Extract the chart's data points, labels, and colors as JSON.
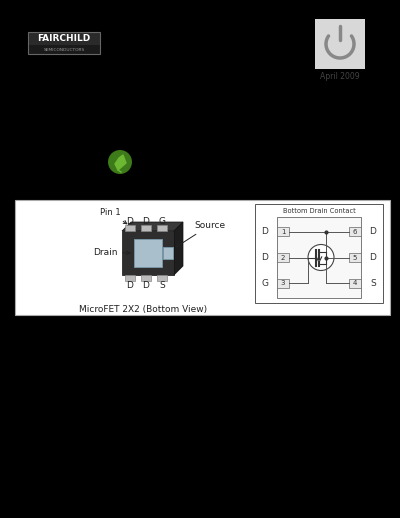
{
  "bg_color": "#000000",
  "white_box_color": "#ffffff",
  "chip_dark": "#222222",
  "chip_mid": "#444444",
  "chip_top": "#333333",
  "chip_side": "#1a1a1a",
  "light_blue_pad": "#aabfcc",
  "pin_box_color": "#bbbbbb",
  "fairchild_text": "FAIRCHILD",
  "fairchild_sub": "SEMICONDUCTORS",
  "date_text": "April 2009",
  "bottom_label": "MicroFET 2X2 (Bottom View)",
  "pin1_label": "Pin 1",
  "drain_label": "Drain",
  "source_label": "Source",
  "top_pin_labels": [
    "D",
    "D",
    "G"
  ],
  "bottom_pin_labels": [
    "D",
    "D",
    "S"
  ],
  "right_schematic_title": "Bottom Drain Contact",
  "schematic_left_labels": [
    "D",
    "D",
    "G"
  ],
  "schematic_right_labels": [
    "D",
    "D",
    "S"
  ],
  "schematic_pin_numbers_left": [
    "1",
    "2",
    "3"
  ],
  "schematic_pin_numbers_right": [
    "6",
    "5",
    "4"
  ],
  "icon_bg": "#d8d8d8",
  "icon_color": "#888888",
  "logo_box_dark": "#1a1a1a",
  "logo_text_color": "#ffffff",
  "logo_sub_color": "#999999",
  "leaf_green_dark": "#3d7a1a",
  "leaf_green_light": "#6db832",
  "box_border": "#aaaaaa",
  "sch_text": "#333333",
  "sch_line": "#555555"
}
